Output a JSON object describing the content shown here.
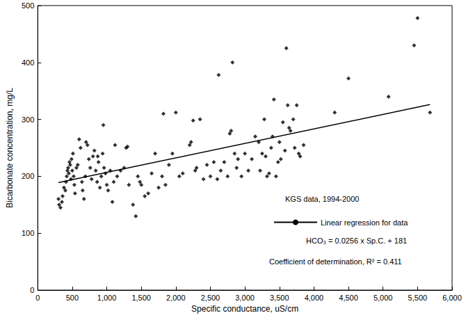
{
  "chart_data": {
    "type": "scatter",
    "x_label": "Specific conductance, uS/cm",
    "y_label": "Bicarbonate concentration, mg/L",
    "annotations": [
      "KGS data, 1994-2000",
      "HCO₃ = 0.0256 x Sp.C. + 181",
      "Coefficient of determination, R² = 0.411"
    ],
    "xlim": [
      0,
      6000
    ],
    "xticks": [
      0,
      500,
      1000,
      1500,
      2000,
      2500,
      3000,
      3500,
      4000,
      4500,
      5000,
      5500,
      6000
    ],
    "ylim": [
      0,
      500
    ],
    "yticks": [
      0,
      100,
      200,
      300,
      400,
      500
    ],
    "grid": false,
    "legend": "right",
    "series": [
      {
        "type": "scatter",
        "marker": "diamond",
        "color": "#000000",
        "x": [
          300,
          310,
          330,
          350,
          360,
          380,
          400,
          410,
          420,
          430,
          440,
          450,
          460,
          470,
          480,
          490,
          500,
          510,
          520,
          530,
          540,
          560,
          580,
          600,
          620,
          640,
          650,
          670,
          690,
          700,
          720,
          740,
          760,
          780,
          800,
          820,
          840,
          860,
          870,
          880,
          900,
          920,
          940,
          950,
          960,
          980,
          1000,
          1020,
          1050,
          1080,
          1100,
          1120,
          1150,
          1200,
          1250,
          1280,
          1300,
          1320,
          1380,
          1420,
          1450,
          1480,
          1500,
          1550,
          1600,
          1650,
          1700,
          1750,
          1800,
          1820,
          1850,
          1900,
          1950,
          2000,
          2050,
          2100,
          2200,
          2220,
          2250,
          2280,
          2300,
          2350,
          2400,
          2450,
          2500,
          2550,
          2600,
          2620,
          2650,
          2700,
          2750,
          2780,
          2800,
          2820,
          2850,
          2880,
          2900,
          2950,
          3000,
          3050,
          3100,
          3150,
          3200,
          3220,
          3250,
          3280,
          3300,
          3320,
          3350,
          3380,
          3400,
          3420,
          3450,
          3480,
          3500,
          3520,
          3550,
          3580,
          3600,
          3620,
          3640,
          3660,
          3700,
          3720,
          3750,
          3780,
          3800,
          3850,
          4300,
          4500,
          5080,
          5450,
          5500,
          5680
        ],
        "values": [
          160,
          150,
          145,
          155,
          165,
          180,
          175,
          190,
          200,
          210,
          215,
          205,
          225,
          220,
          195,
          230,
          210,
          240,
          200,
          185,
          170,
          215,
          220,
          265,
          250,
          190,
          175,
          160,
          200,
          260,
          255,
          230,
          215,
          195,
          235,
          245,
          210,
          190,
          235,
          225,
          180,
          200,
          240,
          290,
          215,
          205,
          185,
          175,
          210,
          155,
          190,
          255,
          200,
          210,
          215,
          250,
          252,
          185,
          150,
          130,
          200,
          190,
          185,
          165,
          170,
          205,
          240,
          180,
          200,
          310,
          185,
          220,
          240,
          312,
          200,
          205,
          255,
          260,
          298,
          210,
          215,
          300,
          195,
          220,
          200,
          225,
          195,
          378,
          210,
          225,
          200,
          275,
          280,
          400,
          240,
          215,
          230,
          200,
          240,
          210,
          230,
          270,
          260,
          210,
          240,
          300,
          235,
          200,
          205,
          250,
          270,
          335,
          200,
          225,
          260,
          230,
          295,
          245,
          425,
          325,
          285,
          280,
          300,
          250,
          325,
          240,
          235,
          255,
          312,
          372,
          340,
          430,
          478,
          312
        ]
      },
      {
        "name": "Linear regression for data",
        "type": "line",
        "line_style": "solid",
        "color": "#000000",
        "x": [
          300,
          5680
        ],
        "values": [
          189,
          326
        ]
      }
    ]
  }
}
